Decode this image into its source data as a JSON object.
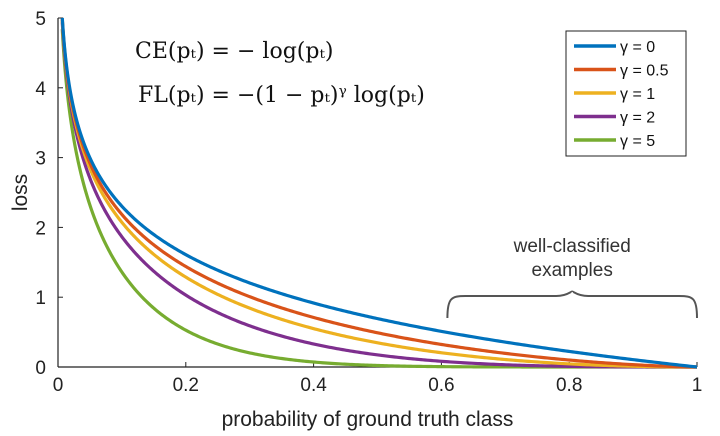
{
  "chart_data": {
    "type": "line",
    "title": "",
    "xlabel": "probability of ground truth class",
    "ylabel": "loss",
    "xlim": [
      0,
      1
    ],
    "ylim": [
      0,
      5
    ],
    "xticks": [
      "0",
      "0.2",
      "0.4",
      "0.6",
      "0.8",
      "1"
    ],
    "yticks": [
      "0",
      "1",
      "2",
      "3",
      "4",
      "5"
    ],
    "grid": false,
    "legend_position": "top-right",
    "formula_ce": "CE(pₜ) = − log(pₜ)",
    "formula_fl": "FL(pₜ) = −(1 − pₜ)ᵞ log(pₜ)",
    "annotation": [
      "well-classified",
      "examples"
    ],
    "annotation_range": [
      0.6,
      1.0
    ],
    "x": [
      0.0067,
      0.01,
      0.02,
      0.03,
      0.05,
      0.07,
      0.1,
      0.15,
      0.2,
      0.25,
      0.3,
      0.35,
      0.4,
      0.45,
      0.5,
      0.55,
      0.6,
      0.65,
      0.7,
      0.75,
      0.8,
      0.85,
      0.9,
      0.95,
      1.0
    ],
    "series": [
      {
        "name": "γ = 0",
        "gamma": 0,
        "color": "#0072BD",
        "values": [
          5.0,
          4.61,
          3.91,
          3.51,
          3.0,
          2.66,
          2.3,
          1.9,
          1.61,
          1.39,
          1.2,
          1.05,
          0.92,
          0.8,
          0.69,
          0.6,
          0.51,
          0.43,
          0.36,
          0.29,
          0.22,
          0.16,
          0.11,
          0.05,
          0.0
        ]
      },
      {
        "name": "γ = 0.5",
        "gamma": 0.5,
        "color": "#D95319",
        "values": [
          4.98,
          4.58,
          3.87,
          3.46,
          2.92,
          2.57,
          2.19,
          1.75,
          1.44,
          1.2,
          1.0,
          0.85,
          0.71,
          0.59,
          0.49,
          0.4,
          0.32,
          0.25,
          0.19,
          0.14,
          0.1,
          0.06,
          0.03,
          0.01,
          0.0
        ]
      },
      {
        "name": "γ = 1",
        "gamma": 1,
        "color": "#EDB120",
        "values": [
          4.97,
          4.56,
          3.83,
          3.4,
          2.85,
          2.47,
          2.07,
          1.61,
          1.29,
          1.04,
          0.84,
          0.68,
          0.55,
          0.44,
          0.35,
          0.27,
          0.2,
          0.15,
          0.11,
          0.07,
          0.04,
          0.02,
          0.01,
          0.0,
          0.0
        ]
      },
      {
        "name": "γ = 2",
        "gamma": 2,
        "color": "#7E2F8E",
        "values": [
          4.93,
          4.51,
          3.76,
          3.3,
          2.71,
          2.3,
          1.87,
          1.37,
          1.03,
          0.78,
          0.59,
          0.44,
          0.33,
          0.24,
          0.17,
          0.12,
          0.08,
          0.05,
          0.03,
          0.02,
          0.01,
          0.0,
          0.0,
          0.0,
          0.0
        ]
      },
      {
        "name": "γ = 5",
        "gamma": 5,
        "color": "#77AC30",
        "values": [
          4.83,
          4.39,
          3.53,
          3.01,
          2.32,
          1.84,
          1.36,
          0.84,
          0.53,
          0.33,
          0.2,
          0.12,
          0.07,
          0.04,
          0.02,
          0.01,
          0.01,
          0.0,
          0.0,
          0.0,
          0.0,
          0.0,
          0.0,
          0.0,
          0.0
        ]
      }
    ]
  }
}
